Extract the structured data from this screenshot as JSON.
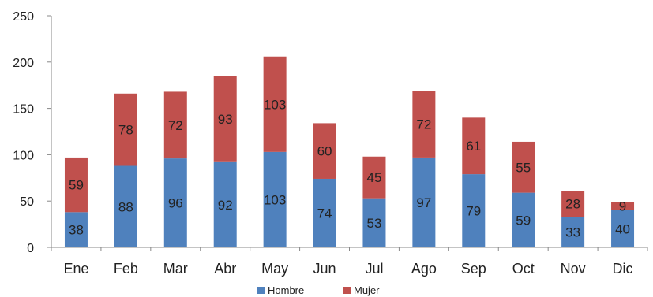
{
  "chart_data": {
    "type": "bar",
    "stacked": true,
    "categories": [
      "Ene",
      "Feb",
      "Mar",
      "Abr",
      "May",
      "Jun",
      "Jul",
      "Ago",
      "Sep",
      "Oct",
      "Nov",
      "Dic"
    ],
    "series": [
      {
        "name": "Hombre",
        "color": "#4F81BD",
        "values": [
          38,
          88,
          96,
          92,
          103,
          74,
          53,
          97,
          79,
          59,
          33,
          40
        ]
      },
      {
        "name": "Mujer",
        "color": "#C0504D",
        "values": [
          59,
          78,
          72,
          93,
          103,
          60,
          45,
          72,
          61,
          55,
          28,
          9
        ]
      }
    ],
    "y_ticks": [
      "0",
      "50",
      "100",
      "150",
      "200",
      "250"
    ],
    "ylim": [
      0,
      250
    ],
    "grid": false,
    "legend_position": "bottom"
  }
}
